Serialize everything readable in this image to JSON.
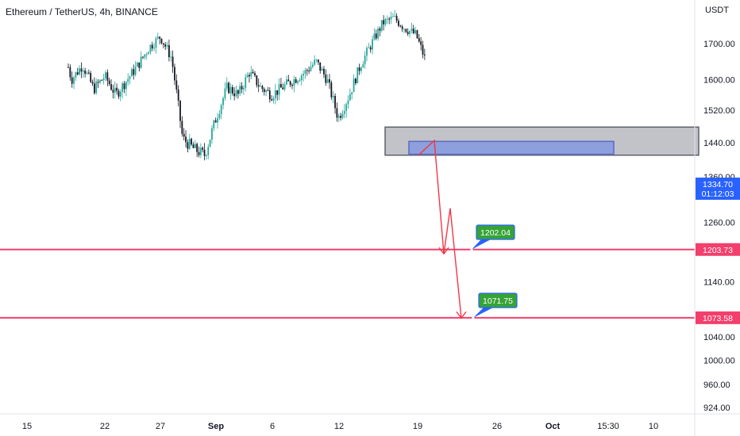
{
  "chart_data": {
    "type": "candlestick",
    "title": "Ethereum / TetherUS, 4h, BINANCE",
    "currency": "USDT",
    "y_ticks": [
      "1700.00",
      "1600.00",
      "1520.00",
      "1440.00",
      "1360.00",
      "1260.00",
      "1140.00",
      "1040.00",
      "1000.00",
      "960.00",
      "924.00"
    ],
    "x_ticks": [
      "15",
      "22",
      "27",
      "Sep",
      "6",
      "12",
      "19",
      "26",
      "Oct",
      "15:30",
      "10"
    ],
    "ylim": [
      905,
      1840
    ],
    "scale": "log",
    "last_price": "1334.70",
    "countdown": "01:12:03",
    "series_points": [
      [
        17,
        1790
      ],
      [
        18,
        1720
      ],
      [
        19,
        1600
      ],
      [
        20,
        1640
      ],
      [
        21,
        1575
      ],
      [
        22,
        1610
      ],
      [
        23,
        1560
      ],
      [
        24,
        1600
      ],
      [
        25,
        1640
      ],
      [
        26,
        1690
      ],
      [
        27,
        1720
      ],
      [
        28,
        1660
      ],
      [
        29,
        1450
      ],
      [
        30,
        1425
      ],
      [
        31,
        1410
      ],
      [
        32,
        1500
      ],
      [
        33,
        1580
      ],
      [
        34,
        1560
      ],
      [
        35,
        1620
      ],
      [
        36,
        1580
      ],
      [
        37,
        1560
      ],
      [
        38,
        1580
      ],
      [
        39,
        1600
      ],
      [
        40,
        1620
      ],
      [
        41,
        1650
      ],
      [
        42,
        1600
      ],
      [
        43,
        1500
      ],
      [
        44,
        1560
      ],
      [
        45,
        1640
      ],
      [
        46,
        1700
      ],
      [
        47,
        1760
      ],
      [
        48,
        1775
      ],
      [
        49,
        1745
      ],
      [
        50,
        1725
      ],
      [
        51,
        1640
      ],
      [
        52,
        1560
      ],
      [
        53,
        1600
      ],
      [
        54,
        1460
      ],
      [
        55,
        1445
      ],
      [
        56,
        1420
      ],
      [
        57,
        1460
      ],
      [
        58,
        1400
      ],
      [
        59,
        1310
      ],
      [
        60,
        1290
      ],
      [
        61,
        1334.7
      ]
    ],
    "bullish_color": "#26a69a",
    "bearish_color": "#131722",
    "zones": [
      {
        "price_top": 1478,
        "price_bottom": 1410,
        "color": "#787b86"
      },
      {
        "price_top": 1443,
        "price_bottom": 1412,
        "color": "#7b93e3"
      }
    ],
    "levels": [
      {
        "price": 1203.73,
        "label": "1203.73",
        "color": "#f23f6c"
      },
      {
        "price": 1073.58,
        "label": "1073.58",
        "color": "#f23f6c"
      }
    ],
    "projection_path": [
      1410,
      1445,
      1195,
      1290,
      1073
    ],
    "projection_color": "#f23645",
    "targets": [
      {
        "label": "1202.04",
        "color": "#36a336"
      },
      {
        "label": "1071.75",
        "color": "#36a336"
      }
    ]
  },
  "ui": {
    "price_tag_color": "#2962ff",
    "level_tag_color": "#f23f6c"
  }
}
